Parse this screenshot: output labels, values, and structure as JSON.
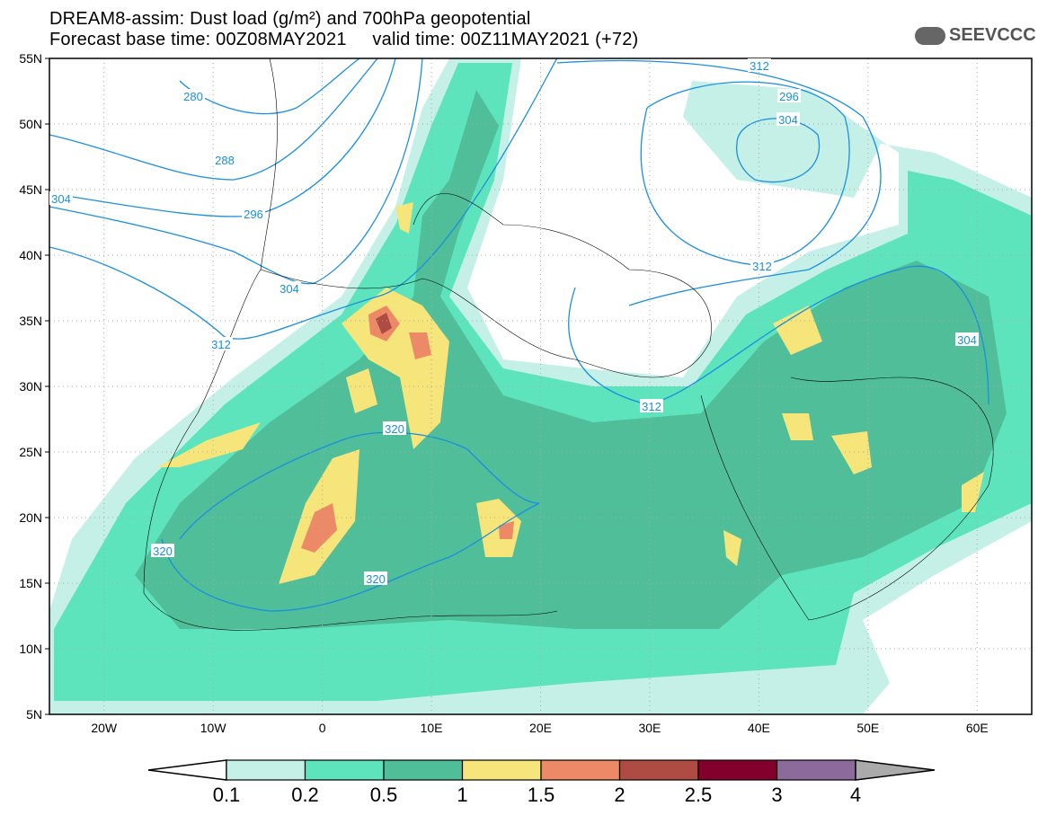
{
  "header": {
    "title": "DREAM8-assim: Dust load (g/m²) and 700hPa geopotential",
    "subtitle": "Forecast base time: 00Z08MAY2021     valid time: 00Z11MAY2021 (+72)",
    "logo": "SEEVCCC"
  },
  "axes": {
    "lat_labels": [
      "55N",
      "50N",
      "45N",
      "40N",
      "35N",
      "30N",
      "25N",
      "20N",
      "15N",
      "10N",
      "5N"
    ],
    "lon_labels": [
      "20W",
      "10W",
      "0",
      "10E",
      "20E",
      "30E",
      "40E",
      "50E",
      "60E"
    ]
  },
  "contour_labels": [
    "280",
    "288",
    "296",
    "304",
    "304",
    "312",
    "320",
    "320",
    "320",
    "312",
    "312",
    "304",
    "296",
    "304",
    "312"
  ],
  "colorbar": {
    "labels": [
      "0.1",
      "0.2",
      "0.5",
      "1",
      "1.5",
      "2",
      "2.5",
      "3",
      "4"
    ],
    "colors": [
      "#c4f0e8",
      "#5ee4bc",
      "#50be98",
      "#f5e57a",
      "#ec8a68",
      "#ae4b42",
      "#84002c",
      "#8c6a9c",
      "#aaaaaa"
    ]
  },
  "colors": {
    "contour": "#1a8fe0",
    "light": "#c4f0e8",
    "mid": "#5ee4bc",
    "dark": "#50be98",
    "yellow": "#f5e57a",
    "orange": "#ec8a68",
    "brown": "#ae4b42"
  }
}
